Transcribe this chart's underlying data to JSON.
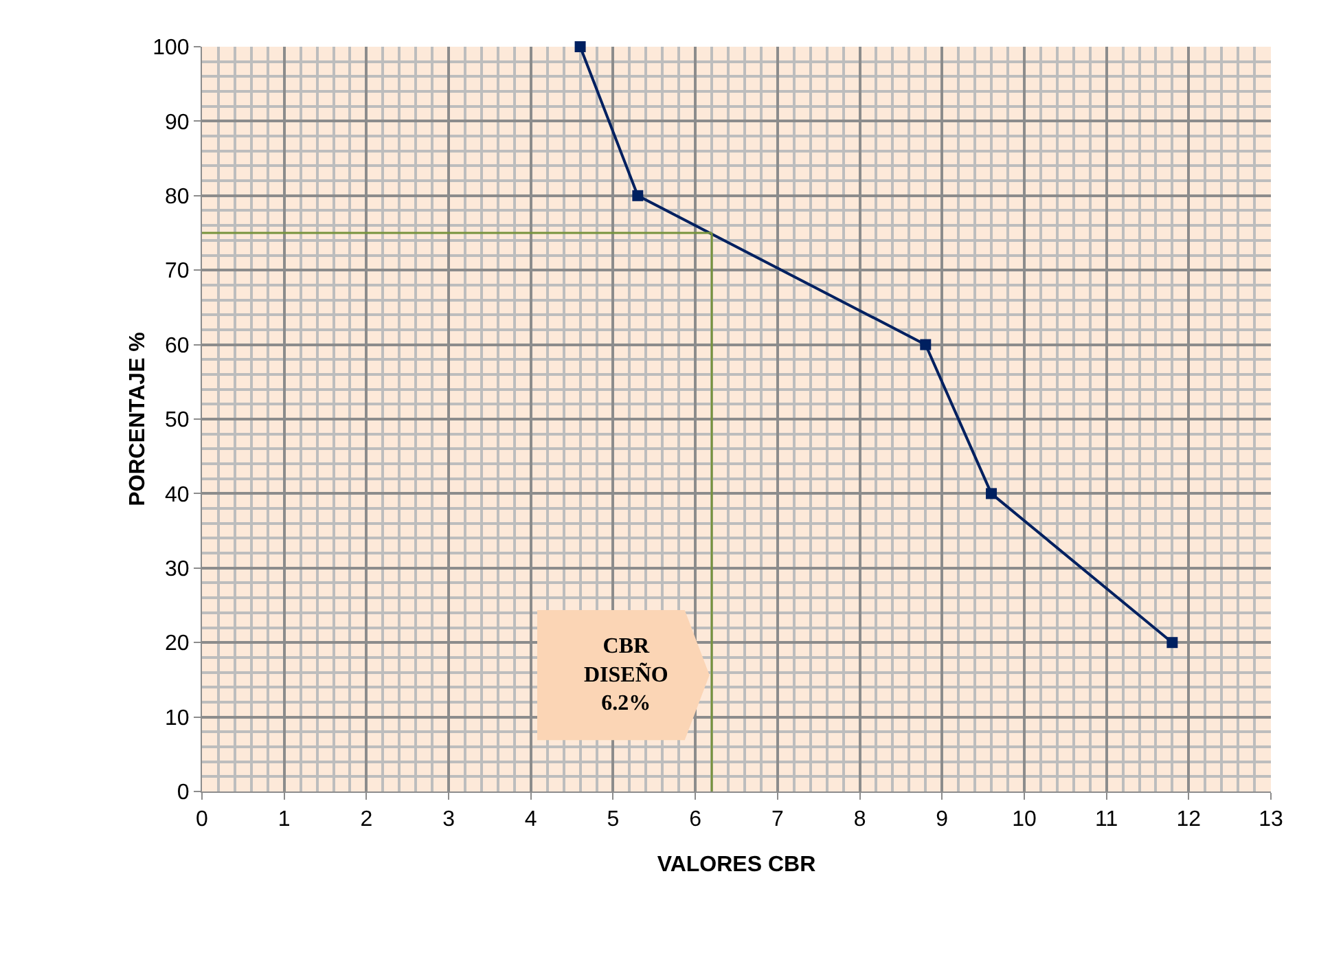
{
  "chart_data": {
    "type": "line",
    "xlabel": "VALORES CBR",
    "ylabel": "PORCENTAJE %",
    "x": [
      4.6,
      5.3,
      8.8,
      9.6,
      11.8
    ],
    "series": [
      {
        "color": "#002060",
        "values": [
          100,
          80,
          60,
          40,
          20
        ]
      }
    ],
    "marker": "square",
    "line_style": "solid",
    "grid": true,
    "xlim": [
      0,
      13
    ],
    "xticks": [
      0,
      1,
      2,
      3,
      4,
      5,
      6,
      7,
      8,
      9,
      10,
      11,
      12,
      13
    ],
    "ylim": [
      0,
      100
    ],
    "yticks": [
      0,
      10,
      20,
      30,
      40,
      50,
      60,
      70,
      80,
      90,
      100
    ],
    "ref_lines": [
      {
        "axis": "x",
        "value": 6.2,
        "label": "CBR\nDISEÑO\n6.2%",
        "color": "#77933c"
      },
      {
        "axis": "y",
        "value": 75,
        "color": "#77933c"
      }
    ]
  }
}
